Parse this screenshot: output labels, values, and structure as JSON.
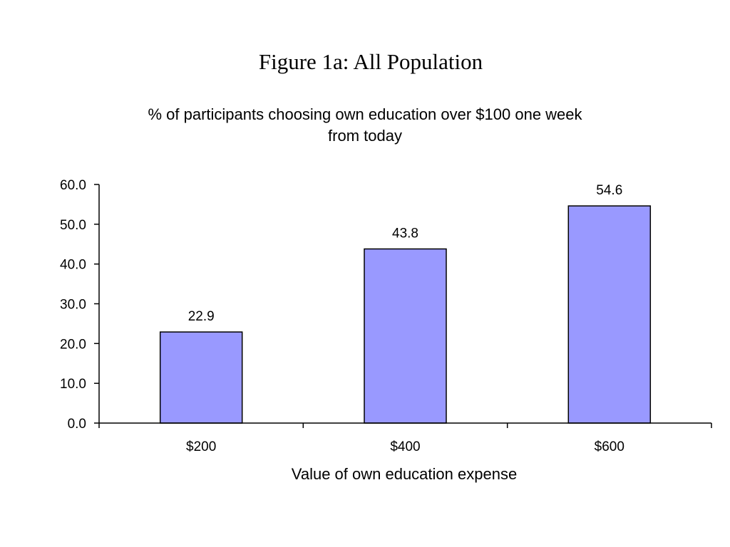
{
  "figure": {
    "title": "Figure 1a: All Population"
  },
  "chart_data": {
    "type": "bar",
    "title_lines": [
      "% of participants choosing own education over $100 one week",
      "from today"
    ],
    "categories": [
      "$200",
      "$400",
      "$600"
    ],
    "values": [
      22.9,
      43.8,
      54.6
    ],
    "data_labels": [
      "22.9",
      "43.8",
      "54.6"
    ],
    "xlabel": "Value of own education expense",
    "ylabel": "",
    "ylim": [
      0,
      60
    ],
    "yticks": [
      "0.0",
      "10.0",
      "20.0",
      "30.0",
      "40.0",
      "50.0",
      "60.0"
    ],
    "grid": false,
    "legend": "none",
    "colors": {
      "bar_fill": "#9999ff",
      "bar_stroke": "#000000",
      "axis": "#000000"
    }
  }
}
